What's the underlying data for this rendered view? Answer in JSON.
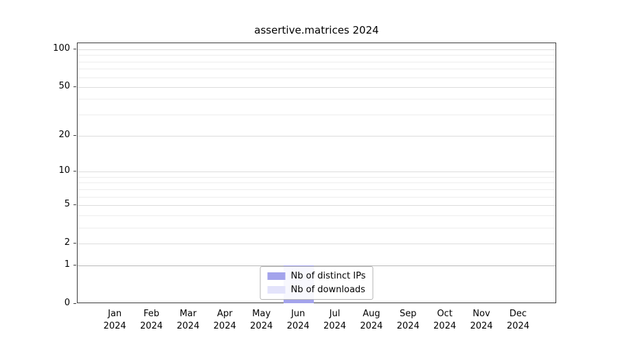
{
  "title": "assertive.matrices 2024",
  "chart_data": {
    "type": "bar",
    "title": "assertive.matrices 2024",
    "yscale": "log1p",
    "ylim": [
      0,
      100
    ],
    "y_ticks": [
      0,
      1,
      2,
      5,
      10,
      20,
      50,
      100
    ],
    "y_minor_gridlines": [
      3,
      4,
      6,
      7,
      8,
      9,
      30,
      40,
      60,
      70,
      80,
      90
    ],
    "categories": [
      "Jan",
      "Feb",
      "Mar",
      "Apr",
      "May",
      "Jun",
      "Jul",
      "Aug",
      "Sep",
      "Oct",
      "Nov",
      "Dec"
    ],
    "year": "2024",
    "series": [
      {
        "name": "Nb of distinct IPs",
        "color": "#a3a3ec",
        "values": [
          0,
          0,
          0,
          0,
          0,
          1,
          0,
          0,
          0,
          0,
          0,
          0
        ]
      },
      {
        "name": "Nb of downloads",
        "color": "#e3e3fb",
        "values": [
          0,
          0,
          0,
          0,
          0,
          1,
          0,
          0,
          0,
          0,
          0,
          0
        ]
      }
    ],
    "legend_position": "lower center",
    "grid": true,
    "xlabel": "",
    "ylabel": ""
  }
}
